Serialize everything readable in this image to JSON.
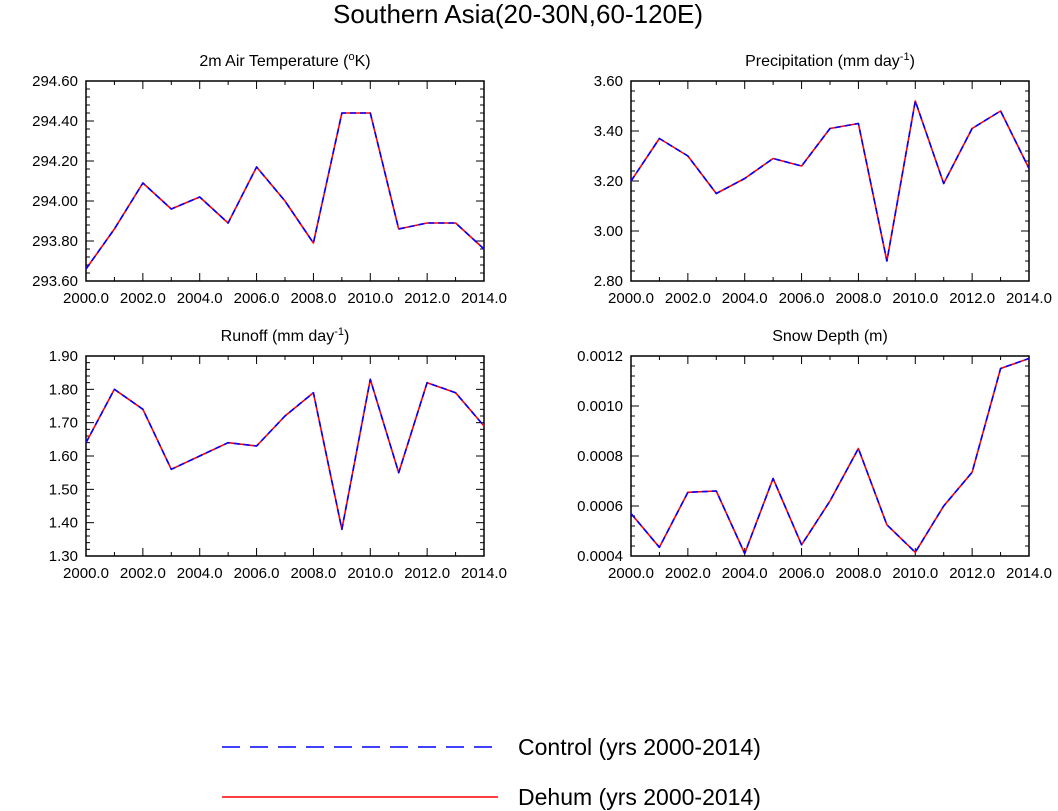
{
  "figure": {
    "title": "Southern Asia(20-30N,60-120E)"
  },
  "legend": {
    "placement": "bottom-center",
    "entries": [
      {
        "label": "Control (yrs 2000-2014)",
        "color": "#0000ff",
        "style": "dashed"
      },
      {
        "label": "Dehum (yrs 2000-2014)",
        "color": "#ff0000",
        "style": "solid"
      }
    ]
  },
  "chart_data": [
    {
      "type": "line",
      "title": "2m Air Temperature (",
      "title_sup": "o",
      "title_tail": "K)",
      "xlim": [
        2000,
        2014
      ],
      "x_ticks": [
        "2000.0",
        "2002.0",
        "2004.0",
        "2006.0",
        "2008.0",
        "2010.0",
        "2012.0",
        "2014.0"
      ],
      "ylim": [
        293.6,
        294.6
      ],
      "y_ticks": [
        "293.60",
        "293.80",
        "294.00",
        "294.20",
        "294.40",
        "294.60"
      ],
      "x": [
        2000,
        2001,
        2002,
        2003,
        2004,
        2005,
        2006,
        2007,
        2008,
        2009,
        2010,
        2011,
        2012,
        2013,
        2014
      ],
      "series": [
        {
          "name": "Control (yrs 2000-2014)",
          "values": [
            293.66,
            293.86,
            294.09,
            293.96,
            294.02,
            293.89,
            294.17,
            294.0,
            293.79,
            294.44,
            294.44,
            293.86,
            293.89,
            293.89,
            293.76
          ]
        },
        {
          "name": "Dehum (yrs 2000-2014)",
          "values": [
            293.66,
            293.86,
            294.09,
            293.96,
            294.02,
            293.89,
            294.17,
            294.0,
            293.79,
            294.44,
            294.44,
            293.86,
            293.89,
            293.89,
            293.76
          ]
        }
      ]
    },
    {
      "type": "line",
      "title": "Precipitation (mm day",
      "title_sup": "-1",
      "title_tail": ")",
      "xlim": [
        2000,
        2014
      ],
      "x_ticks": [
        "2000.0",
        "2002.0",
        "2004.0",
        "2006.0",
        "2008.0",
        "2010.0",
        "2012.0",
        "2014.0"
      ],
      "ylim": [
        2.8,
        3.6
      ],
      "y_ticks": [
        "2.80",
        "3.00",
        "3.20",
        "3.40",
        "3.60"
      ],
      "x": [
        2000,
        2001,
        2002,
        2003,
        2004,
        2005,
        2006,
        2007,
        2008,
        2009,
        2010,
        2011,
        2012,
        2013,
        2014
      ],
      "series": [
        {
          "name": "Control (yrs 2000-2014)",
          "values": [
            3.2,
            3.37,
            3.3,
            3.15,
            3.21,
            3.29,
            3.26,
            3.41,
            3.43,
            2.88,
            3.52,
            3.19,
            3.41,
            3.48,
            3.25
          ]
        },
        {
          "name": "Dehum (yrs 2000-2014)",
          "values": [
            3.2,
            3.37,
            3.3,
            3.15,
            3.21,
            3.29,
            3.26,
            3.41,
            3.43,
            2.88,
            3.52,
            3.19,
            3.41,
            3.48,
            3.25
          ]
        }
      ]
    },
    {
      "type": "line",
      "title": "Runoff (mm day",
      "title_sup": "-1",
      "title_tail": ")",
      "xlim": [
        2000,
        2014
      ],
      "x_ticks": [
        "2000.0",
        "2002.0",
        "2004.0",
        "2006.0",
        "2008.0",
        "2010.0",
        "2012.0",
        "2014.0"
      ],
      "ylim": [
        1.3,
        1.9
      ],
      "y_ticks": [
        "1.30",
        "1.40",
        "1.50",
        "1.60",
        "1.70",
        "1.80",
        "1.90"
      ],
      "x": [
        2000,
        2001,
        2002,
        2003,
        2004,
        2005,
        2006,
        2007,
        2008,
        2009,
        2010,
        2011,
        2012,
        2013,
        2014
      ],
      "series": [
        {
          "name": "Control (yrs 2000-2014)",
          "values": [
            1.64,
            1.8,
            1.74,
            1.56,
            1.6,
            1.64,
            1.63,
            1.72,
            1.79,
            1.38,
            1.83,
            1.55,
            1.82,
            1.79,
            1.69
          ]
        },
        {
          "name": "Dehum (yrs 2000-2014)",
          "values": [
            1.64,
            1.8,
            1.74,
            1.56,
            1.6,
            1.64,
            1.63,
            1.72,
            1.79,
            1.38,
            1.83,
            1.55,
            1.82,
            1.79,
            1.69
          ]
        }
      ]
    },
    {
      "type": "line",
      "title": "Snow Depth (m)",
      "title_sup": "",
      "title_tail": "",
      "xlim": [
        2000,
        2014
      ],
      "x_ticks": [
        "2000.0",
        "2002.0",
        "2004.0",
        "2006.0",
        "2008.0",
        "2010.0",
        "2012.0",
        "2014.0"
      ],
      "ylim": [
        0.0004,
        0.0012
      ],
      "y_ticks": [
        "0.0004",
        "0.0006",
        "0.0008",
        "0.0010",
        "0.0012"
      ],
      "x": [
        2000,
        2001,
        2002,
        2003,
        2004,
        2005,
        2006,
        2007,
        2008,
        2009,
        2010,
        2011,
        2012,
        2013,
        2014
      ],
      "series": [
        {
          "name": "Control (yrs 2000-2014)",
          "values": [
            0.00057,
            0.000435,
            0.000655,
            0.00066,
            0.00041,
            0.00071,
            0.000445,
            0.00062,
            0.00083,
            0.000525,
            0.000415,
            0.0006,
            0.000735,
            0.00115,
            0.00119
          ]
        },
        {
          "name": "Dehum (yrs 2000-2014)",
          "values": [
            0.00057,
            0.000435,
            0.000655,
            0.00066,
            0.00041,
            0.00071,
            0.000445,
            0.00062,
            0.00083,
            0.000525,
            0.000415,
            0.0006,
            0.000735,
            0.00115,
            0.00119
          ]
        }
      ]
    }
  ]
}
